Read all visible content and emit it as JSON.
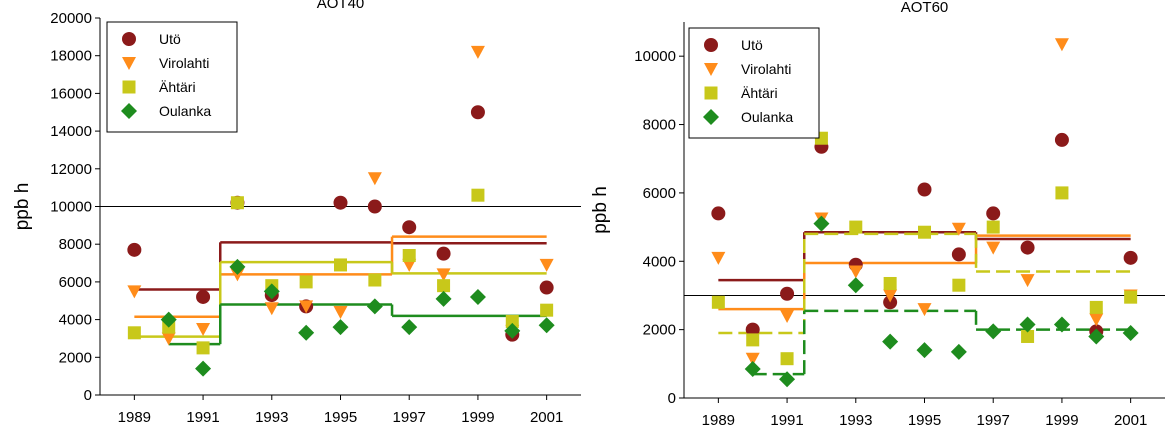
{
  "colors": {
    "Utö": "#8B1A1A",
    "Virolahti": "#FF8C1A",
    "Ähtäri": "#C8C81A",
    "Oulanka": "#1E8C1E"
  },
  "chart_data": [
    {
      "type": "scatter",
      "title": "AOT40",
      "ylabel": "ppb h",
      "ylim": [
        0,
        20000
      ],
      "yticks": [
        0,
        2000,
        4000,
        6000,
        8000,
        10000,
        12000,
        14000,
        16000,
        18000,
        20000
      ],
      "xlim": [
        1988,
        2002
      ],
      "xticks": [
        1989,
        1991,
        1993,
        1995,
        1997,
        1999,
        2001
      ],
      "reference_line": 10000,
      "legend": "top-left",
      "series": [
        {
          "name": "Utö",
          "marker": "circle",
          "x": [
            1989,
            1991,
            1992,
            1993,
            1994,
            1995,
            1996,
            1997,
            1998,
            1999,
            2000,
            2001
          ],
          "y": [
            7700,
            5200,
            10200,
            5300,
            4700,
            10200,
            10000,
            8900,
            7500,
            15000,
            3200,
            5700
          ]
        },
        {
          "name": "Virolahti",
          "marker": "triangle-down",
          "x": [
            1989,
            1990,
            1991,
            1992,
            1993,
            1994,
            1995,
            1996,
            1997,
            1998,
            1999,
            2000,
            2001
          ],
          "y": [
            5500,
            3000,
            3500,
            6400,
            4600,
            4700,
            4400,
            11500,
            6900,
            6400,
            18200,
            3400,
            6900
          ]
        },
        {
          "name": "Ähtäri",
          "marker": "square",
          "x": [
            1989,
            1990,
            1991,
            1992,
            1993,
            1994,
            1995,
            1996,
            1997,
            1998,
            1999,
            2000,
            2001
          ],
          "y": [
            3300,
            3600,
            2500,
            10200,
            5800,
            6000,
            6900,
            6100,
            7400,
            5800,
            10600,
            3900,
            4500
          ]
        },
        {
          "name": "Oulanka",
          "marker": "diamond",
          "x": [
            1990,
            1991,
            1992,
            1993,
            1994,
            1995,
            1996,
            1997,
            1998,
            1999,
            2000,
            2001
          ],
          "y": [
            4000,
            1400,
            6800,
            5500,
            3300,
            3600,
            4700,
            3600,
            5100,
            5200,
            3400,
            3700
          ]
        }
      ],
      "step_lines": [
        {
          "series": "Utö",
          "dash": false,
          "segments": [
            [
              1989,
              1991.5,
              5600
            ],
            [
              1991.5,
              1996.5,
              8100
            ],
            [
              1996.5,
              2001,
              8050
            ]
          ]
        },
        {
          "series": "Virolahti",
          "dash": false,
          "segments": [
            [
              1989,
              1991.5,
              4150
            ],
            [
              1991.5,
              1996.5,
              6400
            ],
            [
              1996.5,
              2001,
              8400
            ]
          ]
        },
        {
          "series": "Ähtäri",
          "dash": false,
          "segments": [
            [
              1989,
              1991.5,
              3100
            ],
            [
              1991.5,
              1996.5,
              7050
            ],
            [
              1996.5,
              2001,
              6450
            ]
          ]
        },
        {
          "series": "Oulanka",
          "dash": false,
          "segments": [
            [
              1990,
              1991.5,
              2700
            ],
            [
              1991.5,
              1996.5,
              4800
            ],
            [
              1996.5,
              2001,
              4200
            ]
          ]
        }
      ]
    },
    {
      "type": "scatter",
      "title": "AOT60",
      "ylabel": "ppb h",
      "ylim": [
        0,
        11000
      ],
      "yticks": [
        0,
        2000,
        4000,
        6000,
        8000,
        10000
      ],
      "xlim": [
        1988,
        2002
      ],
      "xticks": [
        1989,
        1991,
        1993,
        1995,
        1997,
        1999,
        2001
      ],
      "reference_line": 3000,
      "legend": "top-left",
      "series": [
        {
          "name": "Utö",
          "marker": "circle",
          "x": [
            1989,
            1990,
            1991,
            1992,
            1993,
            1994,
            1995,
            1996,
            1997,
            1998,
            1999,
            2000,
            2001
          ],
          "y": [
            5400,
            2000,
            3050,
            7350,
            3900,
            2800,
            6100,
            4200,
            5400,
            4400,
            7550,
            1950,
            4100
          ]
        },
        {
          "name": "Virolahti",
          "marker": "triangle-down",
          "x": [
            1989,
            1990,
            1991,
            1992,
            1993,
            1994,
            1995,
            1996,
            1997,
            1998,
            1999,
            2000,
            2001
          ],
          "y": [
            4100,
            1150,
            2400,
            5250,
            3700,
            3000,
            2600,
            4950,
            4400,
            3450,
            10350,
            2300,
            3000
          ]
        },
        {
          "name": "Ähtäri",
          "marker": "square",
          "x": [
            1989,
            1990,
            1991,
            1992,
            1993,
            1994,
            1995,
            1996,
            1997,
            1998,
            1999,
            2000,
            2001
          ],
          "y": [
            2800,
            1700,
            1150,
            7600,
            5000,
            3350,
            4850,
            3300,
            5000,
            1800,
            6000,
            2650,
            2950
          ]
        },
        {
          "name": "Oulanka",
          "marker": "diamond",
          "x": [
            1990,
            1991,
            1992,
            1993,
            1994,
            1995,
            1996,
            1997,
            1998,
            1999,
            2000,
            2001
          ],
          "y": [
            850,
            550,
            5100,
            3300,
            1650,
            1400,
            1350,
            1950,
            2150,
            2150,
            1800,
            1900
          ]
        }
      ],
      "step_lines": [
        {
          "series": "Utö",
          "dash": false,
          "segments": [
            [
              1989,
              1991.5,
              3450
            ],
            [
              1991.5,
              1996.5,
              4850
            ],
            [
              1996.5,
              2001,
              4650
            ]
          ]
        },
        {
          "series": "Virolahti",
          "dash": false,
          "segments": [
            [
              1989,
              1991.5,
              2600
            ],
            [
              1991.5,
              1996.5,
              3950
            ],
            [
              1996.5,
              2001,
              4750
            ]
          ]
        },
        {
          "series": "Ähtäri",
          "dash": true,
          "segments": [
            [
              1989,
              1991.5,
              1900
            ],
            [
              1991.5,
              1996.5,
              4800
            ],
            [
              1996.5,
              2001,
              3700
            ]
          ]
        },
        {
          "series": "Oulanka",
          "dash": true,
          "segments": [
            [
              1990,
              1991.5,
              700
            ],
            [
              1991.5,
              1996.5,
              2550
            ],
            [
              1996.5,
              2001,
              2000
            ]
          ]
        }
      ]
    }
  ]
}
